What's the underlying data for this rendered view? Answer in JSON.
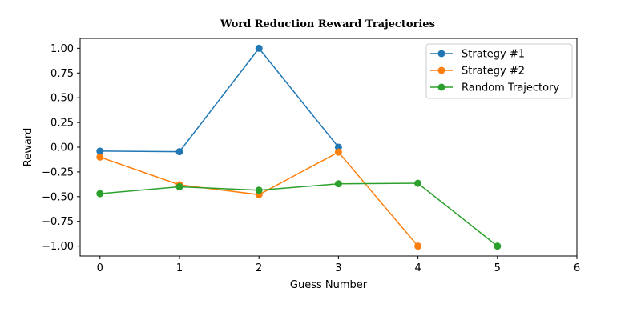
{
  "chart_data": {
    "type": "line",
    "title": "Word Reduction Reward Trajectories",
    "xlabel": "Guess Number",
    "ylabel": "Reward",
    "xlim": [
      -0.25,
      6
    ],
    "ylim": [
      -1.1,
      1.1
    ],
    "xticks": [
      "0",
      "1",
      "2",
      "3",
      "4",
      "5",
      "6"
    ],
    "yticks": [
      "1.00",
      "0.75",
      "0.50",
      "0.25",
      "0.00",
      "−0.25",
      "−0.50",
      "−0.75",
      "−1.00"
    ],
    "grid": false,
    "legend_position": "top-right",
    "series": [
      {
        "name": "Strategy #1",
        "color": "#1f77b4",
        "x": [
          0,
          1,
          2,
          3
        ],
        "y": [
          -0.04,
          -0.045,
          1.0,
          0.0
        ]
      },
      {
        "name": "Strategy #2",
        "color": "#ff7f0e",
        "x": [
          0,
          1,
          2,
          3,
          4
        ],
        "y": [
          -0.1,
          -0.38,
          -0.48,
          -0.05,
          -1.0
        ]
      },
      {
        "name": "Random Trajectory",
        "color": "#2ca02c",
        "x": [
          0,
          1,
          2,
          3,
          4,
          5
        ],
        "y": [
          -0.47,
          -0.4,
          -0.435,
          -0.37,
          -0.365,
          -1.0
        ]
      }
    ]
  }
}
